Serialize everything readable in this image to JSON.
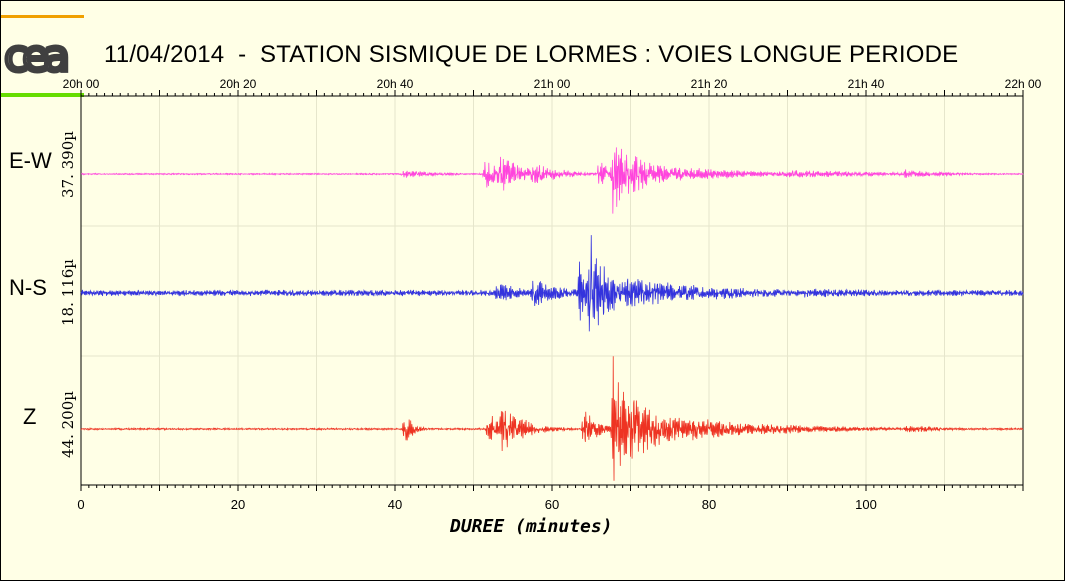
{
  "header": {
    "title": "11/04/2014  -  STATION SISMIQUE DE LORMES : VOIES LONGUE PERIODE",
    "logo_text": "cea",
    "logo_colors": {
      "top_bar": "#f0a000",
      "bottom_bar": "#66dd00",
      "letters": "#404040"
    }
  },
  "chart_data": {
    "type": "line",
    "title": "11/04/2014  -  STATION SISMIQUE DE LORMES : VOIES LONGUE PERIODE",
    "xlabel": "DUREE (minutes)",
    "xlim": [
      0,
      120
    ],
    "x_ticks": [
      0,
      20,
      40,
      60,
      80,
      100
    ],
    "x_tick_labels": [
      "0",
      "20",
      "40",
      "60",
      "80",
      "100"
    ],
    "top_axis": {
      "label_values": [
        0,
        20,
        40,
        60,
        80,
        100,
        120
      ],
      "labels": [
        "20h 00",
        "20h 20",
        "20h 40",
        "21h 00",
        "21h 20",
        "21h 40",
        "22h 00"
      ]
    },
    "grid": true,
    "grid_color": "#e6e6cc",
    "background": "#ffffe6",
    "series": [
      {
        "name": "E-W",
        "scale": "37. 390µ",
        "color": "#ff44dd",
        "events": [
          {
            "t": 41.0,
            "amp": 0.06,
            "dur": 5
          },
          {
            "t": 51.5,
            "amp": 0.25,
            "dur": 2.5
          },
          {
            "t": 53.5,
            "amp": 0.32,
            "dur": 3
          },
          {
            "t": 57.0,
            "amp": 0.18,
            "dur": 4
          },
          {
            "t": 66.0,
            "amp": 0.2,
            "dur": 3
          },
          {
            "t": 67.8,
            "amp": 0.9,
            "dur": 1.5
          },
          {
            "t": 69.5,
            "amp": 0.35,
            "dur": 4
          },
          {
            "t": 72.0,
            "amp": 0.15,
            "dur": 12
          },
          {
            "t": 90.0,
            "amp": 0.06,
            "dur": 15
          },
          {
            "t": 105.0,
            "amp": 0.07,
            "dur": 5
          }
        ],
        "base_noise": 0.01
      },
      {
        "name": "N-S",
        "scale": "18. 116µ",
        "color": "#3333dd",
        "events": [
          {
            "t": 41.0,
            "amp": 0.03,
            "dur": 5
          },
          {
            "t": 53.0,
            "amp": 0.17,
            "dur": 3
          },
          {
            "t": 57.5,
            "amp": 0.2,
            "dur": 4
          },
          {
            "t": 63.5,
            "amp": 0.42,
            "dur": 2
          },
          {
            "t": 64.8,
            "amp": 0.85,
            "dur": 1.5
          },
          {
            "t": 66.5,
            "amp": 0.4,
            "dur": 3
          },
          {
            "t": 69.5,
            "amp": 0.25,
            "dur": 6
          },
          {
            "t": 73.0,
            "amp": 0.15,
            "dur": 14
          },
          {
            "t": 92.0,
            "amp": 0.06,
            "dur": 25
          }
        ],
        "base_noise": 0.04
      },
      {
        "name": "Z",
        "scale": "44. 200µ",
        "color": "#ee3322",
        "events": [
          {
            "t": 41.2,
            "amp": 0.22,
            "dur": 1
          },
          {
            "t": 51.8,
            "amp": 0.18,
            "dur": 2.5
          },
          {
            "t": 53.5,
            "amp": 0.28,
            "dur": 3
          },
          {
            "t": 64.0,
            "amp": 0.22,
            "dur": 2
          },
          {
            "t": 67.8,
            "amp": 0.95,
            "dur": 1.5
          },
          {
            "t": 69.5,
            "amp": 0.55,
            "dur": 3.5
          },
          {
            "t": 72.0,
            "amp": 0.2,
            "dur": 12
          },
          {
            "t": 88.0,
            "amp": 0.06,
            "dur": 12
          },
          {
            "t": 105.0,
            "amp": 0.05,
            "dur": 5
          }
        ],
        "base_noise": 0.01
      }
    ]
  }
}
